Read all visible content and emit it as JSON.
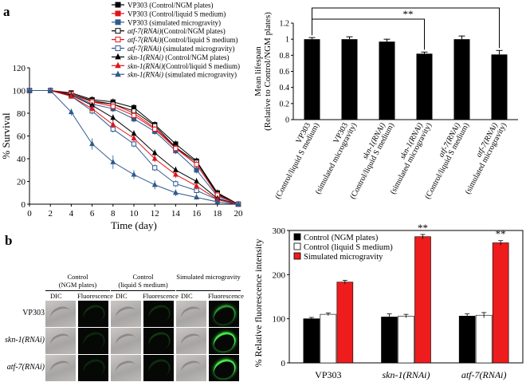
{
  "panel_labels": {
    "a": "a",
    "b": "b"
  },
  "colors": {
    "vp_black": "#000000",
    "red": "#e0141a",
    "blue": "#2f5a8e",
    "bar_black": "#000000",
    "bar_white": "#ffffff",
    "bar_red": "#ee1c1c",
    "dic_tile": "#b9b6b4",
    "fluo_tile": "#050805",
    "gfp_green": "#49ff4f"
  },
  "chart_data": [
    {
      "id": "survival",
      "type": "line",
      "xlabel": "Time (day)",
      "ylabel": "% Survival",
      "xlim": [
        0,
        20
      ],
      "ylim": [
        0,
        120
      ],
      "xticks": [
        0,
        2,
        4,
        6,
        8,
        10,
        12,
        14,
        16,
        18,
        20
      ],
      "yticks": [
        0,
        20,
        40,
        60,
        80,
        100,
        120
      ],
      "x": [
        0,
        2,
        4,
        6,
        8,
        10,
        12,
        14,
        16,
        18,
        20
      ],
      "legend": {
        "placement": "top-left outside"
      },
      "series": [
        {
          "name": "VP303 (Control/NGM plates)",
          "italic_part": "",
          "color": "vp_black",
          "marker": "square",
          "filled": true,
          "values": [
            100,
            100,
            98,
            92,
            90,
            85,
            70,
            53,
            38,
            10,
            0
          ],
          "errors": [
            0,
            0,
            2,
            3,
            3,
            3,
            3,
            3,
            3,
            3,
            0
          ]
        },
        {
          "name": "VP303 (Control/liquid S medium)",
          "italic_part": "",
          "color": "red",
          "marker": "square",
          "filled": true,
          "values": [
            100,
            100,
            97,
            90,
            88,
            80,
            67,
            50,
            35,
            8,
            0
          ],
          "errors": [
            0,
            0,
            2,
            3,
            3,
            3,
            3,
            3,
            3,
            3,
            0
          ]
        },
        {
          "name": "VP303 (simulated microgravity)",
          "italic_part": "",
          "color": "blue",
          "marker": "square",
          "filled": true,
          "values": [
            100,
            100,
            97,
            88,
            84,
            75,
            64,
            47,
            30,
            7,
            0
          ],
          "errors": [
            0,
            0,
            2,
            3,
            3,
            3,
            3,
            3,
            3,
            3,
            0
          ]
        },
        {
          "name": "atf-7(RNAi)(Control/NGM plates)",
          "italic_part": "atf-7(RNAi)",
          "color": "vp_black",
          "marker": "square",
          "filled": false,
          "values": [
            100,
            100,
            97,
            91,
            88,
            82,
            69,
            50,
            37,
            9,
            0
          ],
          "errors": [
            0,
            0,
            2,
            3,
            3,
            3,
            3,
            3,
            3,
            3,
            0
          ]
        },
        {
          "name": "atf-7(RNAi)(Control/liquid S medium)",
          "italic_part": "atf-7(RNAi)",
          "color": "red",
          "marker": "square",
          "filled": false,
          "values": [
            100,
            100,
            97,
            90,
            86,
            78,
            66,
            49,
            35,
            8,
            0
          ],
          "errors": [
            0,
            0,
            2,
            3,
            3,
            3,
            3,
            3,
            3,
            3,
            0
          ]
        },
        {
          "name": "atf-7(RNAi) (simulated microgravity)",
          "italic_part": "atf-7(RNAi)",
          "color": "blue",
          "marker": "square",
          "filled": false,
          "values": [
            100,
            100,
            95,
            82,
            66,
            53,
            32,
            18,
            12,
            4,
            0
          ],
          "errors": [
            0,
            0,
            2,
            3,
            3,
            3,
            3,
            3,
            3,
            2,
            0
          ]
        },
        {
          "name": "skn-1(RNAi) (Control/NGM plates)",
          "italic_part": "skn-1(RNAi)",
          "color": "vp_black",
          "marker": "triangle",
          "filled": true,
          "values": [
            100,
            100,
            96,
            87,
            76,
            62,
            45,
            30,
            20,
            5,
            0
          ],
          "errors": [
            0,
            0,
            2,
            3,
            3,
            3,
            3,
            3,
            3,
            2,
            0
          ]
        },
        {
          "name": "skn-1(RNAi)(Control/liquid S medium)",
          "italic_part": "skn-1(RNAi)",
          "color": "red",
          "marker": "triangle",
          "filled": true,
          "values": [
            100,
            100,
            95,
            84,
            70,
            58,
            40,
            26,
            16,
            4,
            0
          ],
          "errors": [
            0,
            0,
            2,
            3,
            3,
            3,
            3,
            3,
            3,
            2,
            0
          ]
        },
        {
          "name": "skn-1(RNAi) (simulated microgravity)",
          "italic_part": "skn-1(RNAi)",
          "color": "blue",
          "marker": "triangle",
          "filled": true,
          "values": [
            100,
            100,
            81,
            53,
            37,
            26,
            17,
            10,
            6,
            2,
            0
          ],
          "errors": [
            0,
            0,
            3,
            5,
            6,
            4,
            4,
            3,
            2,
            1,
            0
          ]
        }
      ]
    },
    {
      "id": "lifespan",
      "type": "bar",
      "ylabel": "Mean lifespan",
      "ylabel2": "(Relative to Control/NGM plates)",
      "ylim": [
        0,
        1.2
      ],
      "yticks": [
        0,
        0.2,
        0.4,
        0.6,
        0.8,
        1,
        1.2
      ],
      "ytick_labels": [
        "0",
        "0.2",
        "0.4",
        "0.6",
        "0.8",
        "1",
        "1.2"
      ],
      "categories": [
        {
          "label": "VP303",
          "label2": "(Control/liquid S medium)",
          "italic": false
        },
        {
          "label": "VP303",
          "label2": "(simulated microgravity)",
          "italic": false
        },
        {
          "label": "skn-1(RNAi)",
          "label2": "(Control/liquid S medium)",
          "italic": true
        },
        {
          "label": "skn-1(RNAi)",
          "label2": "(simulated microgravity)",
          "italic": true
        },
        {
          "label": "atf-7(RNAi)",
          "label2": "(Control/liquid S medium)",
          "italic": true
        },
        {
          "label": "atf-7(RNAi)",
          "label2": "(simulated microgravity)",
          "italic": true
        }
      ],
      "values": [
        1.0,
        1.0,
        0.97,
        0.82,
        1.0,
        0.81
      ],
      "errors": [
        0.02,
        0.03,
        0.03,
        0.02,
        0.04,
        0.05
      ],
      "significance": [
        {
          "from": 0,
          "to": 3,
          "label": "**"
        },
        {
          "from": 0,
          "to": 5,
          "label": "**"
        }
      ]
    },
    {
      "id": "fluorescence",
      "type": "bar",
      "ylabel": "% Relative fluorescence intensity",
      "ylim": [
        0,
        300
      ],
      "yticks": [
        0,
        100,
        200,
        300
      ],
      "categories": [
        {
          "label": "VP303",
          "italic": false
        },
        {
          "label": "skn-1(RNAi)",
          "italic": true
        },
        {
          "label": "atf-7(RNAi)",
          "italic": true
        }
      ],
      "legend": {
        "placement": "top-left"
      },
      "series": [
        {
          "name": "Control (NGM plates)",
          "color": "bar_black",
          "values": [
            100,
            104,
            106
          ],
          "errors": [
            3,
            7,
            5
          ]
        },
        {
          "name": "Control (liquid S medium)",
          "color": "bar_white",
          "values": [
            110,
            106,
            108
          ],
          "errors": [
            3,
            4,
            6
          ]
        },
        {
          "name": "Simulated microgravity",
          "color": "bar_red",
          "values": [
            183,
            286,
            272
          ],
          "errors": [
            4,
            5,
            5
          ]
        }
      ],
      "annotations": [
        {
          "category": 1,
          "series": 2,
          "label": "**"
        },
        {
          "category": 2,
          "series": 2,
          "label": "**"
        }
      ]
    }
  ],
  "micrographs": {
    "groups": [
      {
        "title": "Control",
        "title2": "(NGM plates)",
        "cols": [
          "DIC",
          "Fluorescence"
        ]
      },
      {
        "title": "Control",
        "title2": "(liquid S medium)",
        "cols": [
          "DIC",
          "Fluorescence"
        ]
      },
      {
        "title": "Simulated microgravity",
        "title2": "",
        "cols": [
          "DIC",
          "Fluorescence"
        ]
      }
    ],
    "rows": [
      {
        "label": "VP303",
        "italic": false,
        "gfp": [
          0.15,
          0.15,
          0.55
        ]
      },
      {
        "label": "skn-1(RNAi)",
        "italic": true,
        "gfp": [
          0.12,
          0.18,
          0.9
        ]
      },
      {
        "label": "atf-7(RNAi)",
        "italic": true,
        "gfp": [
          0.12,
          0.15,
          0.9
        ]
      }
    ]
  }
}
